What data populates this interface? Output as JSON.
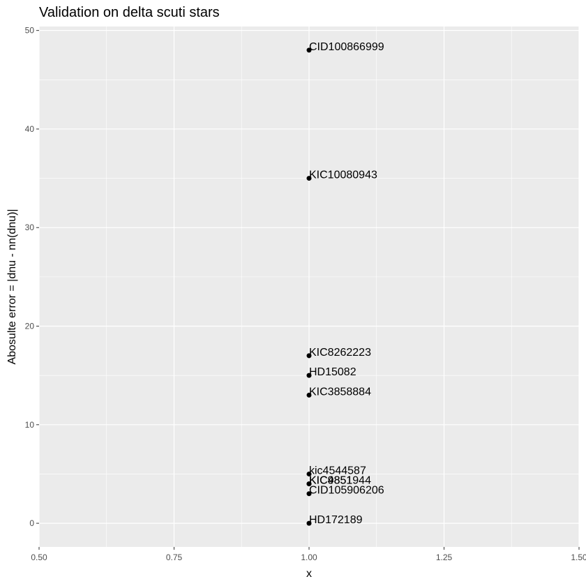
{
  "chart_data": {
    "type": "scatter",
    "title": "Validation on delta scuti stars",
    "xlabel": "x",
    "ylabel": "Abosulte error = |dnu - nn(dnu)|",
    "xlim": [
      0.5,
      1.5
    ],
    "ylim": [
      -2.4,
      50.4
    ],
    "x_ticks": [
      0.5,
      0.75,
      1.0,
      1.25,
      1.5
    ],
    "x_tick_labels": [
      "0.50",
      "0.75",
      "1.00",
      "1.25",
      "1.50"
    ],
    "y_ticks": [
      0,
      10,
      20,
      30,
      40,
      50
    ],
    "y_tick_labels": [
      "0",
      "10",
      "20",
      "30",
      "40",
      "50"
    ],
    "grid": true,
    "legend": "none",
    "points": [
      {
        "label": "CID100866999",
        "x": 1.0,
        "y": 48
      },
      {
        "label": "KIC10080943",
        "x": 1.0,
        "y": 35
      },
      {
        "label": "KIC8262223",
        "x": 1.0,
        "y": 17
      },
      {
        "label": "HD15082",
        "x": 1.0,
        "y": 15
      },
      {
        "label": "KIC3858884",
        "x": 1.0,
        "y": 13
      },
      {
        "label": "kic4544587",
        "x": 1.0,
        "y": 5
      },
      {
        "label": "KIC9851944",
        "x": 1.0,
        "y": 4
      },
      {
        "label": "KIC4851",
        "x": 1.0,
        "y": 4
      },
      {
        "label": "CID105906206",
        "x": 1.0,
        "y": 3
      },
      {
        "label": "HD172189",
        "x": 1.0,
        "y": 0
      }
    ],
    "colors": {
      "panel_background": "#ebebeb",
      "grid_major": "#ffffff",
      "point": "#000000",
      "tick_text": "#4d4d4d"
    }
  }
}
